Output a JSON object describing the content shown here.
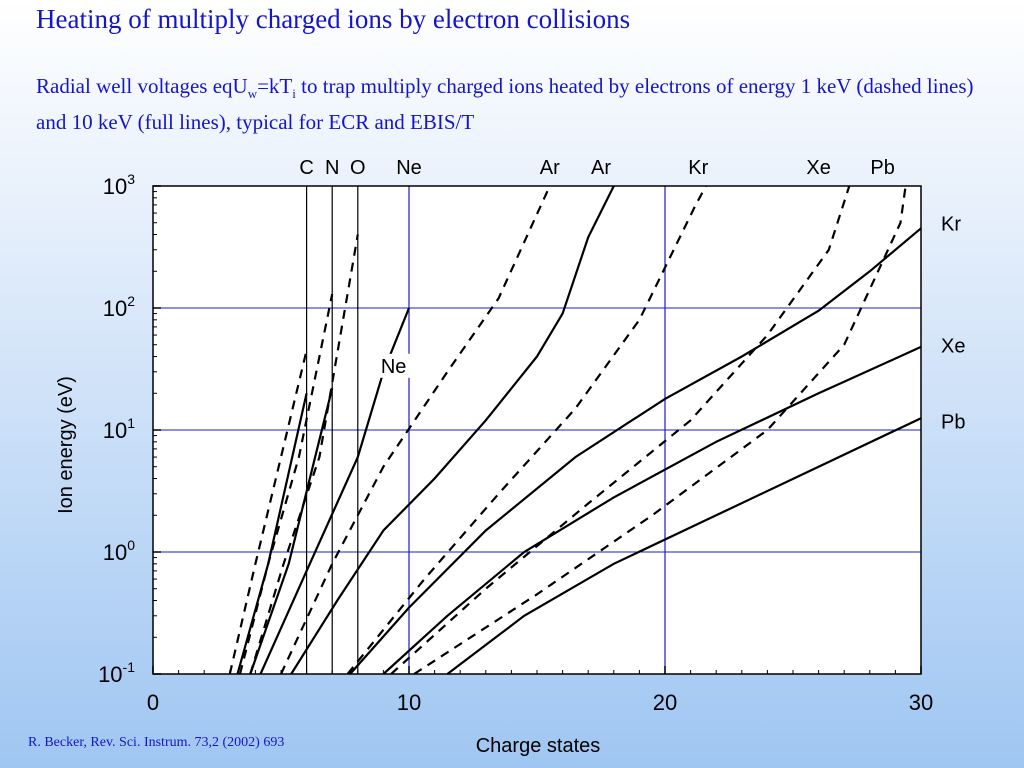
{
  "slide": {
    "title": "Heating of multiply charged ions by electron collisions",
    "subtitle": {
      "p1": "Radial well voltages eqU",
      "s1": "w",
      "p2": "=kT",
      "s2": "i",
      "p3": " to trap multiply charged ions heated by electrons of energy 1 keV (dashed lines) and 10 keV (full lines), typical for ECR and EBIS/T"
    },
    "reference": "R. Becker, Rev. Sci. Instrum. 73,2 (2002) 693"
  },
  "chart_data": {
    "type": "line",
    "xlabel": "Charge states",
    "ylabel": "Ion energy (eV)",
    "xlim": [
      0,
      30
    ],
    "ylim": [
      0.1,
      1000
    ],
    "yscale": "log",
    "xticks": [
      {
        "v": 0,
        "label": "0"
      },
      {
        "v": 10,
        "label": "10"
      },
      {
        "v": 20,
        "label": "20"
      },
      {
        "v": 30,
        "label": "30"
      }
    ],
    "yticks": [
      {
        "v": 0.1,
        "base": "10",
        "exp": "-1"
      },
      {
        "v": 1,
        "base": "10",
        "exp": "0"
      },
      {
        "v": 10,
        "base": "10",
        "exp": "1"
      },
      {
        "v": 100,
        "base": "10",
        "exp": "2"
      },
      {
        "v": 1000,
        "base": "10",
        "exp": "3"
      }
    ],
    "grid_color": "#1c1cd0",
    "grid_x": [
      10,
      20
    ],
    "grid_y": [
      1,
      10,
      100
    ],
    "element_lines": [
      {
        "z": 6,
        "label": "C",
        "color": "#000000"
      },
      {
        "z": 7,
        "label": "N",
        "color": "#000000"
      },
      {
        "z": 8,
        "label": "O",
        "color": "#000000"
      },
      {
        "z": 10,
        "label": "Ne",
        "color": "#1c1cd0"
      },
      {
        "z": 20,
        "label": "",
        "color": "#1c1cd0"
      }
    ],
    "series_dashed": [
      {
        "points": [
          [
            3.0,
            0.1
          ],
          [
            4.0,
            0.8
          ],
          [
            5.0,
            6
          ],
          [
            6.0,
            45
          ]
        ]
      },
      {
        "points": [
          [
            3.4,
            0.1
          ],
          [
            4.5,
            0.8
          ],
          [
            5.7,
            6
          ],
          [
            7.0,
            130
          ]
        ]
      },
      {
        "points": [
          [
            3.8,
            0.1
          ],
          [
            5.1,
            0.8
          ],
          [
            6.5,
            6
          ],
          [
            8.0,
            400
          ]
        ]
      },
      {
        "points": [
          [
            5.0,
            0.1
          ],
          [
            7.0,
            0.8
          ],
          [
            9.0,
            5
          ],
          [
            11.5,
            30
          ],
          [
            13.5,
            120
          ],
          [
            15.5,
            1000
          ]
        ]
      },
      {
        "points": [
          [
            7.6,
            0.1
          ],
          [
            10.6,
            0.6
          ],
          [
            13.5,
            3
          ],
          [
            16.5,
            15
          ],
          [
            19.0,
            80
          ],
          [
            21.2,
            700
          ],
          [
            21.6,
            1000
          ]
        ]
      },
      {
        "points": [
          [
            9.3,
            0.1
          ],
          [
            13.0,
            0.5
          ],
          [
            17.0,
            2.5
          ],
          [
            21.0,
            12
          ],
          [
            24.0,
            60
          ],
          [
            26.4,
            300
          ],
          [
            27.2,
            1000
          ]
        ]
      },
      {
        "points": [
          [
            10.2,
            0.1
          ],
          [
            15.0,
            0.45
          ],
          [
            19.5,
            2
          ],
          [
            24.0,
            10
          ],
          [
            27.0,
            50
          ],
          [
            29.2,
            500
          ],
          [
            29.4,
            1000
          ]
        ]
      }
    ],
    "series_full": [
      {
        "points": [
          [
            3.3,
            0.1
          ],
          [
            4.5,
            0.8
          ],
          [
            6.0,
            20
          ]
        ]
      },
      {
        "points": [
          [
            3.8,
            0.1
          ],
          [
            5.3,
            0.8
          ],
          [
            7.0,
            22
          ]
        ]
      },
      {
        "points": [
          [
            4.2,
            0.1
          ],
          [
            6.0,
            0.7
          ],
          [
            8.0,
            6
          ],
          [
            9.0,
            30
          ],
          [
            10.0,
            100
          ]
        ]
      },
      {
        "points": [
          [
            5.4,
            0.1
          ],
          [
            7.2,
            0.4
          ],
          [
            9.0,
            1.5
          ],
          [
            11.0,
            4
          ],
          [
            13.0,
            12
          ],
          [
            15.0,
            40
          ],
          [
            16.0,
            90
          ],
          [
            17.0,
            380
          ],
          [
            18.0,
            1000
          ]
        ]
      },
      {
        "points": [
          [
            7.7,
            0.1
          ],
          [
            10.0,
            0.35
          ],
          [
            13.0,
            1.5
          ],
          [
            16.5,
            6
          ],
          [
            20.0,
            18
          ],
          [
            23.0,
            40
          ],
          [
            26.0,
            95
          ],
          [
            28.0,
            200
          ],
          [
            30.0,
            450
          ]
        ]
      },
      {
        "points": [
          [
            9.0,
            0.1
          ],
          [
            11.5,
            0.3
          ],
          [
            14.5,
            1.0
          ],
          [
            18.0,
            2.8
          ],
          [
            22.0,
            8
          ],
          [
            26.0,
            20
          ],
          [
            30.0,
            48
          ]
        ]
      },
      {
        "points": [
          [
            11.5,
            0.1
          ],
          [
            14.5,
            0.3
          ],
          [
            18.0,
            0.8
          ],
          [
            22.0,
            2
          ],
          [
            26.0,
            5
          ],
          [
            30.0,
            12.5
          ]
        ]
      }
    ],
    "top_labels": [
      {
        "text": "Ar",
        "x": 15.5
      },
      {
        "text": "Ar",
        "x": 17.5
      },
      {
        "text": "Kr",
        "x": 21.3
      },
      {
        "text": "Xe",
        "x": 26.0
      },
      {
        "text": "Pb",
        "x": 28.5
      }
    ],
    "right_labels": [
      {
        "text": "Kr",
        "y": 500
      },
      {
        "text": "Xe",
        "y": 50
      },
      {
        "text": "Pb",
        "y": 12
      }
    ],
    "inline_label": {
      "text": "Ne",
      "x": 8.9,
      "y": 30
    }
  }
}
